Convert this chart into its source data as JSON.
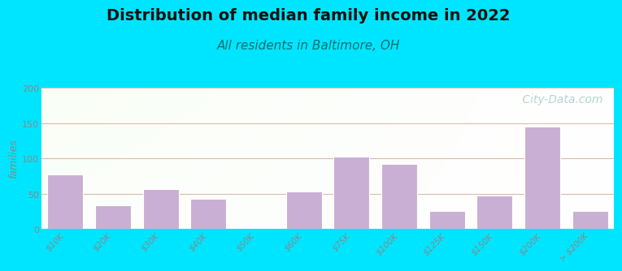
{
  "title": "Distribution of median family income in 2022",
  "subtitle": "All residents in Baltimore, OH",
  "categories": [
    "$10K",
    "$20K",
    "$30K",
    "$40K",
    "$50K",
    "$60K",
    "$75K",
    "$100K",
    "$125K",
    "$150K",
    "$200K",
    "> $200K"
  ],
  "values": [
    77,
    33,
    56,
    43,
    0,
    53,
    103,
    92,
    25,
    47,
    145,
    25
  ],
  "bar_color": "#c9afd4",
  "bar_edgecolor": "#ffffff",
  "ylabel": "families",
  "ylim": [
    0,
    200
  ],
  "yticks": [
    0,
    50,
    100,
    150,
    200
  ],
  "background_outer": "#00e5ff",
  "bg_color_topleft": "#c8e6c0",
  "bg_color_topright": "#e8f4f0",
  "bg_color_bottomleft": "#e8f0e0",
  "bg_color_bottomright": "#f8faf8",
  "grid_color": "#ddbbaa",
  "title_fontsize": 14,
  "subtitle_fontsize": 11,
  "subtitle_color": "#007070",
  "tick_color": "#888888",
  "tick_fontsize": 7.5,
  "watermark": " City-Data.com",
  "watermark_color": "#aacccc",
  "watermark_fontsize": 10
}
